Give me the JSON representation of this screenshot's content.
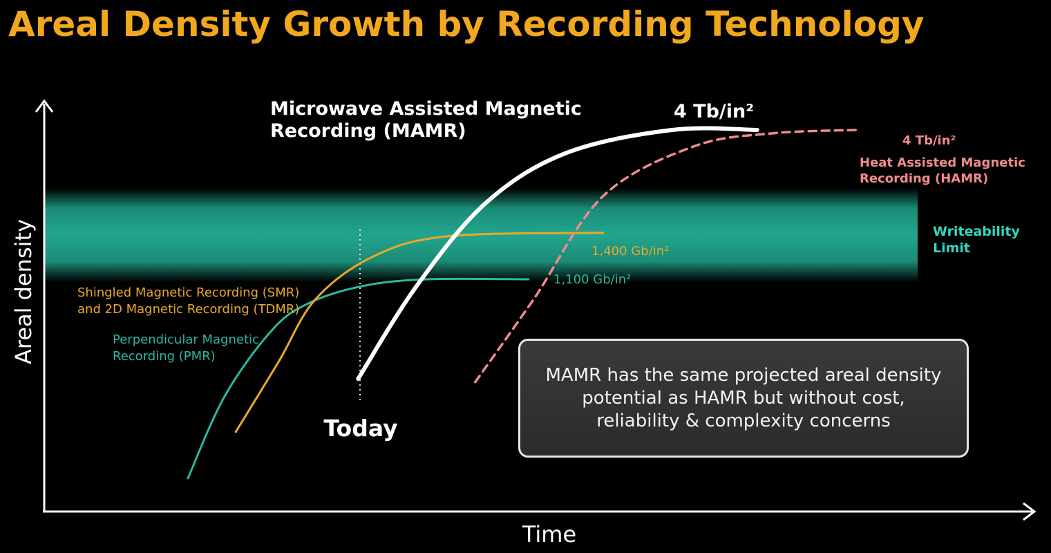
{
  "chart_data": {
    "type": "line",
    "title": "Areal Density Growth by Recording Technology",
    "xlabel": "Time",
    "ylabel": "Areal density",
    "axes_ticks": "none",
    "grid": false,
    "band": {
      "label_line1": "Writeability",
      "label_line2": "Limit",
      "color": "#1fa58c"
    },
    "today_marker": {
      "label": "Today",
      "style": "dotted vertical line"
    },
    "series": [
      {
        "key": "pmr",
        "name_line1": "Perpendicular Magnetic",
        "name_line2": "Recording (PMR)",
        "color": "#2bb8a0",
        "style": "solid",
        "x": [
          0.29,
          0.36,
          0.45,
          0.52,
          0.62,
          0.74,
          0.93
        ],
        "y": [
          0.1,
          0.35,
          0.55,
          0.63,
          0.68,
          0.7,
          0.7
        ],
        "end_label": "1,100 Gb/in²"
      },
      {
        "key": "smr",
        "name_line1": "Shingled Magnetic Recording (SMR)",
        "name_line2": "and 2D Magnetic Recording (TDMR)",
        "color": "#e9a92a",
        "style": "solid",
        "x": [
          0.38,
          0.46,
          0.53,
          0.64,
          0.78,
          1.07
        ],
        "y": [
          0.24,
          0.45,
          0.64,
          0.77,
          0.83,
          0.84
        ],
        "end_label": "1,400 Gb/in²"
      },
      {
        "key": "mamr",
        "name_line1": "Microwave Assisted Magnetic",
        "name_line2": "Recording (MAMR)",
        "color": "#ffffff",
        "style": "solid",
        "x": [
          0.61,
          0.72,
          0.85,
          1.0,
          1.2,
          1.36
        ],
        "y": [
          0.4,
          0.68,
          0.93,
          1.08,
          1.15,
          1.15
        ],
        "end_label": "4 Tb/in²"
      },
      {
        "key": "hamr",
        "name_line1": "Heat Assisted Magnetic",
        "name_line2": "Recording (HAMR)",
        "color": "#f08b8d",
        "style": "dashed",
        "x": [
          0.83,
          0.94,
          1.07,
          1.24,
          1.39,
          1.55
        ],
        "y": [
          0.39,
          0.64,
          0.95,
          1.1,
          1.14,
          1.15
        ],
        "end_label": "4 Tb/in²"
      }
    ]
  },
  "callout": {
    "line1": "MAMR has the same projected areal density",
    "line2": "potential as HAMR but without cost,",
    "line3": "reliability & complexity concerns"
  },
  "colors": {
    "title": "#f1a81f",
    "axis": "#ffffff",
    "background": "#000000"
  }
}
